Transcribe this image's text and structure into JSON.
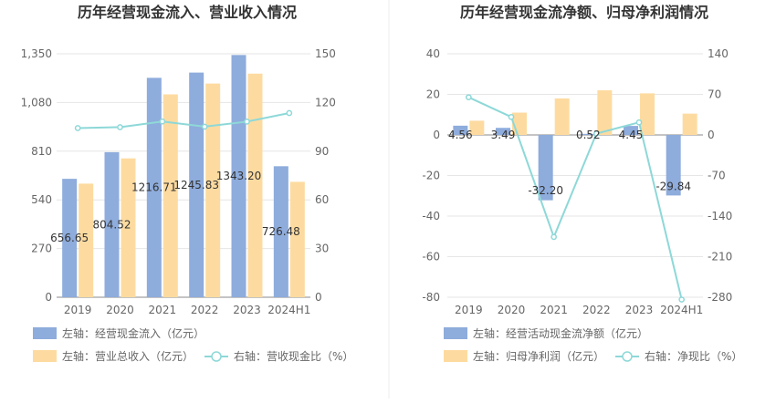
{
  "chart_data": [
    {
      "type": "bar",
      "title": "历年经营现金流入、营业收入情况",
      "categories": [
        "2019",
        "2020",
        "2021",
        "2022",
        "2023",
        "2024H1"
      ],
      "left_axis": {
        "min": 0,
        "max": 1350,
        "ticks": [
          "0",
          "270",
          "540",
          "810",
          "1,080",
          "1,350"
        ]
      },
      "right_axis": {
        "min": 0,
        "max": 150,
        "ticks": [
          "0",
          "30",
          "60",
          "90",
          "120",
          "150"
        ]
      },
      "series": [
        {
          "name": "左轴：经营现金流入（亿元）",
          "axis": "left",
          "type": "bar",
          "color": "#8eacdc",
          "values": [
            656.65,
            804.52,
            1216.71,
            1245.83,
            1343.2,
            726.48
          ],
          "labels": [
            "656.65",
            "804.52",
            "1216.71",
            "1245.83",
            "1343.20",
            "726.48"
          ]
        },
        {
          "name": "左轴：营业总收入（亿元）",
          "axis": "left",
          "type": "bar",
          "color": "#fddba0",
          "values": [
            630,
            770,
            1125,
            1185,
            1240,
            640
          ]
        },
        {
          "name": "右轴：营收现金比（%）",
          "axis": "right",
          "type": "line",
          "color": "#8ed8d8",
          "values": [
            104.2,
            104.8,
            108.3,
            105.1,
            108.2,
            113.5
          ]
        }
      ],
      "grid": true,
      "legend": "bottom"
    },
    {
      "type": "bar",
      "title": "历年经营现金流净额、归母净利润情况",
      "categories": [
        "2019",
        "2020",
        "2021",
        "2022",
        "2023",
        "2024H1"
      ],
      "left_axis": {
        "min": -80,
        "max": 40,
        "ticks": [
          "-80",
          "-60",
          "-40",
          "-20",
          "0",
          "20",
          "40"
        ]
      },
      "right_axis": {
        "min": -280,
        "max": 140,
        "ticks": [
          "-280",
          "-210",
          "-140",
          "-70",
          "0",
          "70",
          "140"
        ]
      },
      "series": [
        {
          "name": "左轴：经营活动现金流净额（亿元）",
          "axis": "left",
          "type": "bar",
          "color": "#8eacdc",
          "values": [
            4.56,
            3.49,
            -32.2,
            0.52,
            4.45,
            -29.84
          ],
          "labels": [
            "4.56",
            "3.49",
            "-32.20",
            "0.52",
            "4.45",
            "-29.84"
          ]
        },
        {
          "name": "左轴：归母净利润（亿元）",
          "axis": "left",
          "type": "bar",
          "color": "#fddba0",
          "values": [
            7,
            11,
            18,
            22,
            20.5,
            10.5
          ]
        },
        {
          "name": "右轴：净现比（%）",
          "axis": "right",
          "type": "line",
          "color": "#8ed8d8",
          "values": [
            65,
            31,
            -176,
            2.4,
            21.7,
            -284
          ]
        }
      ],
      "grid": true,
      "legend": "bottom"
    }
  ]
}
